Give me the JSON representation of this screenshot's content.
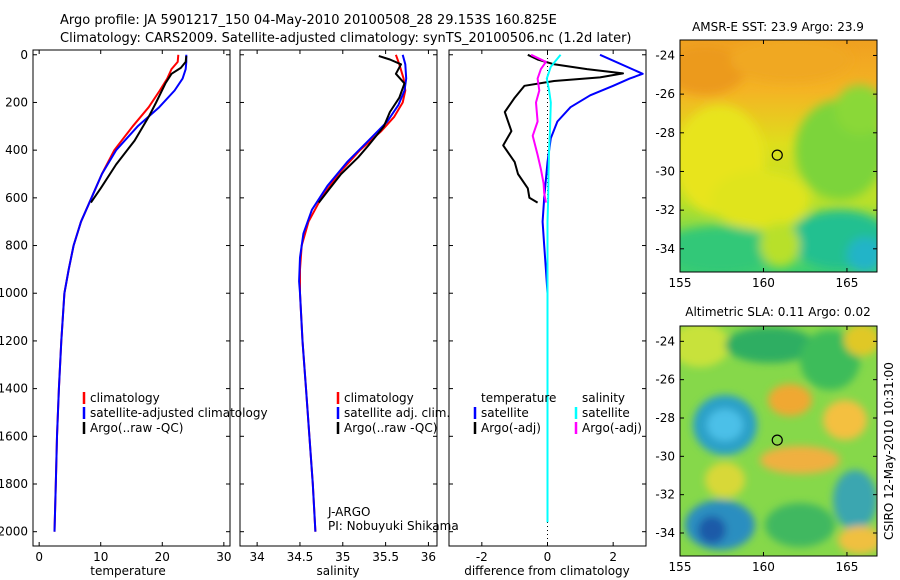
{
  "header": {
    "line1": "Argo profile: JA 5901217_150 04-May-2010 20100508_28 29.153S 160.825E",
    "line2": "Climatology: CARS2009. Satellite-adjusted climatology: synTS_20100506.nc (1.2d later)"
  },
  "side_text": "CSIRO 12-May-2010 10:31:00",
  "colors": {
    "red": "#ff0000",
    "blue": "#0000ff",
    "black": "#000000",
    "cyan": "#00ffff",
    "magenta": "#ff00ff"
  },
  "chart_data": [
    {
      "type": "line",
      "id": "temperature",
      "xlabel": "temperature",
      "xlim": [
        -1,
        31
      ],
      "ylim": [
        2060,
        -20
      ],
      "xticks": [
        0,
        10,
        20,
        30
      ],
      "yticks": [
        0,
        200,
        400,
        600,
        800,
        1000,
        1200,
        1400,
        1600,
        1800,
        2000
      ],
      "legend": {
        "placement": "lower-right",
        "entries": [
          "climatology",
          "satellite-adjusted climatology",
          "Argo(..raw -QC)"
        ]
      },
      "series": [
        {
          "name": "climatology",
          "color": "red",
          "x": [
            22.6,
            22.5,
            21.5,
            20.8,
            19.6,
            17.8,
            15.2,
            12.2,
            10.2,
            8.5,
            6.8,
            5.6,
            4.8,
            4.1,
            3.6,
            3.2,
            2.9,
            2.7,
            2.5
          ],
          "y": [
            0,
            30,
            60,
            100,
            150,
            220,
            300,
            400,
            500,
            600,
            700,
            800,
            900,
            1000,
            1200,
            1400,
            1600,
            1800,
            2000
          ]
        },
        {
          "name": "satellite-adjusted climatology",
          "color": "blue",
          "x": [
            23.9,
            23.9,
            23.8,
            23.3,
            22.0,
            19.5,
            16.0,
            12.5,
            10.2,
            8.5,
            6.8,
            5.6,
            4.8,
            4.1,
            3.6,
            3.2,
            2.9,
            2.7,
            2.5
          ],
          "y": [
            0,
            30,
            60,
            100,
            150,
            220,
            300,
            400,
            500,
            600,
            700,
            800,
            900,
            1000,
            1200,
            1400,
            1600,
            1800,
            2000
          ]
        },
        {
          "name": "Argo(..raw -QC)",
          "color": "black",
          "x": [
            23.9,
            23.8,
            23.0,
            21.5,
            20.5,
            19.0,
            17.8,
            15.5,
            12.5,
            10.0,
            8.4
          ],
          "y": [
            5,
            30,
            55,
            80,
            120,
            200,
            260,
            360,
            460,
            560,
            620
          ]
        }
      ]
    },
    {
      "type": "line",
      "id": "salinity",
      "xlabel": "salinity",
      "xlim": [
        33.8,
        36.1
      ],
      "ylim": [
        2060,
        -20
      ],
      "xticks": [
        34,
        34.5,
        35,
        35.5,
        36
      ],
      "legend": {
        "placement": "lower-right",
        "entries": [
          "climatology",
          "satellite adj. clim.",
          "Argo(..raw -QC)"
        ]
      },
      "annotation": [
        "J-ARGO",
        "PI: Nobuyuki Shikama"
      ],
      "series": [
        {
          "name": "climatology",
          "color": "red",
          "x": [
            35.62,
            35.66,
            35.71,
            35.73,
            35.7,
            35.6,
            35.45,
            35.2,
            34.95,
            34.75,
            34.6,
            34.52,
            34.5,
            34.5,
            34.53,
            34.57,
            34.61,
            34.65,
            34.68
          ],
          "y": [
            0,
            40,
            100,
            150,
            200,
            260,
            320,
            400,
            500,
            600,
            700,
            800,
            900,
            1000,
            1200,
            1400,
            1600,
            1800,
            2000
          ]
        },
        {
          "name": "satellite adj. clim.",
          "color": "blue",
          "x": [
            35.7,
            35.73,
            35.74,
            35.72,
            35.65,
            35.52,
            35.3,
            35.05,
            34.82,
            34.64,
            34.54,
            34.5,
            34.49,
            34.5,
            34.53,
            34.57,
            34.61,
            34.65,
            34.68
          ],
          "y": [
            0,
            40,
            100,
            150,
            210,
            280,
            360,
            450,
            550,
            650,
            750,
            850,
            950,
            1000,
            1200,
            1400,
            1600,
            1800,
            2000
          ]
        },
        {
          "name": "Argo(..raw -QC)",
          "color": "black",
          "x": [
            35.42,
            35.55,
            35.68,
            35.62,
            35.72,
            35.66,
            35.55,
            35.48,
            35.3,
            35.18,
            34.98,
            34.85,
            34.72
          ],
          "y": [
            5,
            20,
            40,
            80,
            120,
            180,
            240,
            300,
            380,
            430,
            500,
            560,
            620
          ]
        }
      ]
    },
    {
      "type": "line",
      "id": "difference",
      "xlabel": "difference from climatology",
      "xlim": [
        -3,
        3
      ],
      "ylim": [
        2060,
        -20
      ],
      "xticks": [
        -2,
        0,
        2
      ],
      "zero_line": "dotted",
      "legend": {
        "placement": "lower-center",
        "temperature_header": "temperature",
        "salinity_header": "salinity",
        "temperature_entries": [
          "satellite",
          "Argo(-adj)"
        ],
        "salinity_entries": [
          "satellite",
          "Argo(-adj)"
        ]
      },
      "series": [
        {
          "name": "temperature satellite",
          "color": "blue",
          "x": [
            1.6,
            2.9,
            2.5,
            2.0,
            1.3,
            0.7,
            0.3,
            0.1,
            0,
            -0.1,
            -0.15,
            -0.1,
            -0.05,
            0,
            0
          ],
          "y": [
            0,
            80,
            100,
            130,
            170,
            220,
            280,
            350,
            450,
            600,
            700,
            800,
            900,
            1000,
            1050
          ]
        },
        {
          "name": "temperature Argo(-adj)",
          "color": "black",
          "x": [
            -0.6,
            -0.3,
            0.2,
            1.2,
            2.3,
            1.6,
            0.2,
            -0.7,
            -1.0,
            -1.3,
            -1.1,
            -1.35,
            -1.0,
            -0.9,
            -0.6,
            -0.55,
            -0.3
          ],
          "y": [
            0,
            20,
            40,
            60,
            78,
            95,
            110,
            130,
            180,
            240,
            320,
            380,
            450,
            500,
            560,
            600,
            620
          ]
        },
        {
          "name": "salinity satellite",
          "color": "cyan",
          "x": [
            0.4,
            0.1,
            -0.02,
            0.05,
            0.1,
            0.08,
            0.05,
            0.03,
            0.02,
            0,
            0,
            0,
            0,
            0,
            0,
            0,
            0
          ],
          "y": [
            0,
            50,
            100,
            150,
            200,
            300,
            400,
            500,
            600,
            700,
            800,
            1000,
            1200,
            1400,
            1600,
            1800,
            1960
          ]
        },
        {
          "name": "salinity Argo(-adj)",
          "color": "magenta",
          "x": [
            -0.5,
            -0.05,
            -0.2,
            -0.3,
            -0.25,
            -0.35,
            -0.3,
            -0.45,
            -0.3,
            -0.2,
            -0.12,
            -0.1,
            -0.05
          ],
          "y": [
            0,
            30,
            60,
            100,
            150,
            200,
            280,
            340,
            420,
            480,
            540,
            580,
            620
          ]
        }
      ]
    },
    {
      "type": "heatmap",
      "id": "sst_map",
      "title": "AMSR-E SST: 23.9 Argo: 23.9",
      "xlim": [
        155,
        166.8
      ],
      "ylim": [
        -35.2,
        -23.2
      ],
      "xticks": [
        155,
        160,
        165
      ],
      "yticks": [
        -24,
        -26,
        -28,
        -30,
        -32,
        -34
      ],
      "argo_position": [
        160.825,
        -29.153
      ]
    },
    {
      "type": "heatmap",
      "id": "sla_map",
      "title": "Altimetric SLA: 0.11 Argo: 0.02",
      "xlim": [
        155,
        166.8
      ],
      "ylim": [
        -35.2,
        -23.2
      ],
      "xticks": [
        155,
        160,
        165
      ],
      "yticks": [
        -24,
        -26,
        -28,
        -30,
        -32,
        -34
      ],
      "argo_position": [
        160.825,
        -29.153
      ]
    }
  ]
}
